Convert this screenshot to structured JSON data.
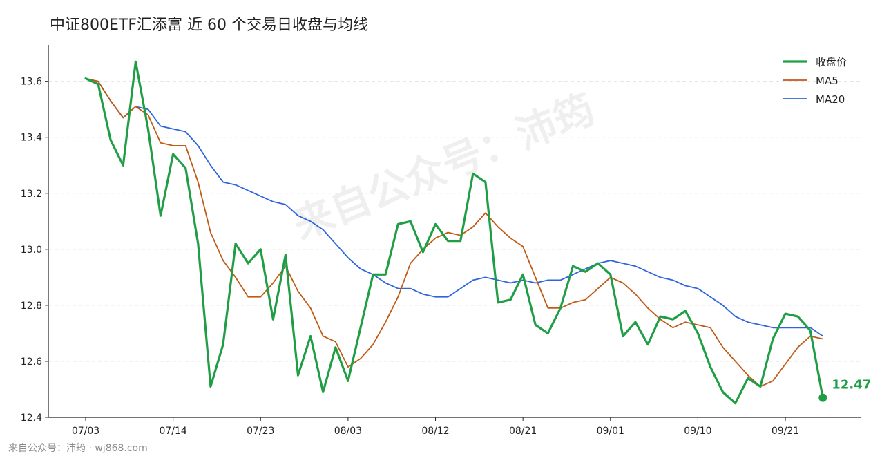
{
  "title": "中证800ETF汇添富 近 60 个交易日收盘与均线",
  "watermark": "来自公众号：沛筠",
  "footer": "来自公众号：沛筠 · wj868.com",
  "colors": {
    "close": "#1f9e45",
    "ma5": "#c05a14",
    "ma20": "#2e64e0",
    "grid": "#e3e3e3",
    "axis": "#222222"
  },
  "chart_data": {
    "type": "line",
    "title": "中证800ETF汇添富 近 60 个交易日收盘与均线",
    "ylim": [
      12.4,
      13.73
    ],
    "yticks": [
      "12.4",
      "12.6",
      "12.8",
      "13.0",
      "13.2",
      "13.4",
      "13.6"
    ],
    "xticks": [
      {
        "label": "07/03",
        "index": 0
      },
      {
        "label": "07/14",
        "index": 7
      },
      {
        "label": "07/23",
        "index": 14
      },
      {
        "label": "08/03",
        "index": 21
      },
      {
        "label": "08/12",
        "index": 28
      },
      {
        "label": "08/21",
        "index": 35
      },
      {
        "label": "09/01",
        "index": 42
      },
      {
        "label": "09/10",
        "index": 49
      },
      {
        "label": "09/21",
        "index": 56
      }
    ],
    "grid": "horizontal dashed",
    "legend_position": "top-right",
    "series": [
      {
        "name": "收盘价",
        "key": "close",
        "values": [
          13.61,
          13.59,
          13.39,
          13.3,
          13.67,
          13.43,
          13.12,
          13.34,
          13.29,
          13.02,
          12.51,
          12.66,
          13.02,
          12.95,
          13.0,
          12.75,
          12.98,
          12.55,
          12.69,
          12.49,
          12.65,
          12.53,
          12.72,
          12.91,
          12.91,
          13.09,
          13.1,
          12.99,
          13.09,
          13.03,
          13.03,
          13.27,
          13.24,
          12.81,
          12.82,
          12.91,
          12.73,
          12.7,
          12.79,
          12.94,
          12.92,
          12.95,
          12.91,
          12.69,
          12.74,
          12.66,
          12.76,
          12.75,
          12.78,
          12.7,
          12.58,
          12.49,
          12.45,
          12.54,
          12.51,
          12.68,
          12.77,
          12.76,
          12.71,
          12.47
        ]
      },
      {
        "name": "MA5",
        "key": "ma5",
        "values": [
          13.61,
          13.6,
          13.53,
          13.47,
          13.51,
          13.48,
          13.38,
          13.37,
          13.37,
          13.24,
          13.06,
          12.96,
          12.9,
          12.83,
          12.83,
          12.88,
          12.94,
          12.85,
          12.79,
          12.69,
          12.67,
          12.58,
          12.61,
          12.66,
          12.74,
          12.83,
          12.95,
          13.0,
          13.04,
          13.06,
          13.05,
          13.08,
          13.13,
          13.08,
          13.04,
          13.01,
          12.9,
          12.79,
          12.79,
          12.81,
          12.82,
          12.86,
          12.9,
          12.88,
          12.84,
          12.79,
          12.75,
          12.72,
          12.74,
          12.73,
          12.72,
          12.65,
          12.6,
          12.55,
          12.51,
          12.53,
          12.59,
          12.65,
          12.69,
          12.68
        ]
      },
      {
        "name": "MA20",
        "key": "ma20",
        "values": [
          13.61,
          13.6,
          13.53,
          13.47,
          13.51,
          13.5,
          13.44,
          13.43,
          13.42,
          13.37,
          13.3,
          13.24,
          13.23,
          13.21,
          13.19,
          13.17,
          13.16,
          13.12,
          13.1,
          13.07,
          13.02,
          12.97,
          12.93,
          12.91,
          12.88,
          12.86,
          12.86,
          12.84,
          12.83,
          12.83,
          12.86,
          12.89,
          12.9,
          12.89,
          12.88,
          12.89,
          12.88,
          12.89,
          12.89,
          12.91,
          12.93,
          12.95,
          12.96,
          12.95,
          12.94,
          12.92,
          12.9,
          12.89,
          12.87,
          12.86,
          12.83,
          12.8,
          12.76,
          12.74,
          12.73,
          12.72,
          12.72,
          12.72,
          12.72,
          12.69
        ]
      }
    ],
    "end_label": "12.47"
  }
}
